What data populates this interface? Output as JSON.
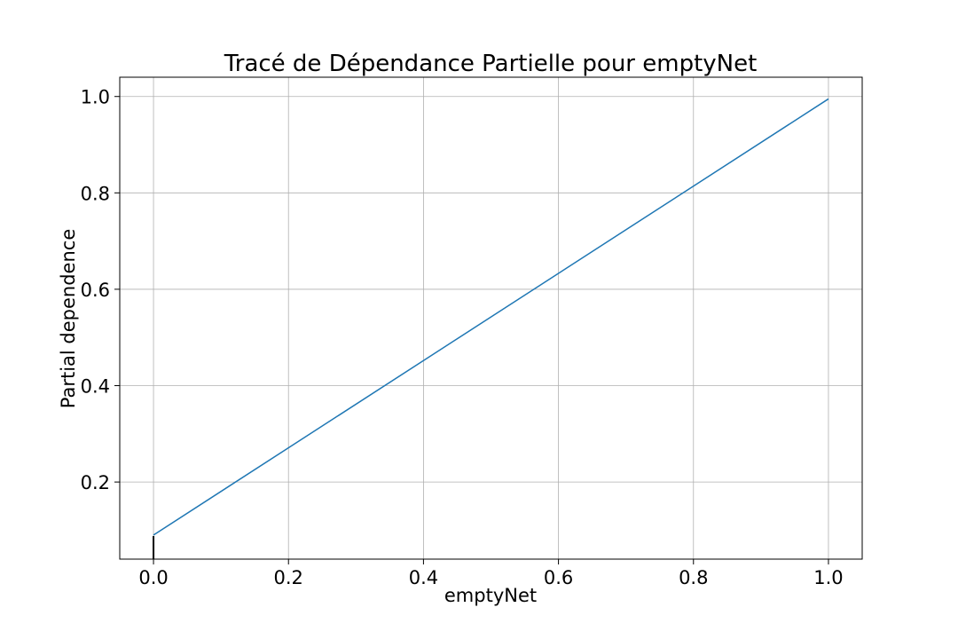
{
  "chart_data": {
    "type": "line",
    "title": "Tracé de Dépendance Partielle pour emptyNet",
    "xlabel": "emptyNet",
    "ylabel": "Partial dependence",
    "xlim": [
      -0.05,
      1.05
    ],
    "ylim": [
      0.04,
      1.04
    ],
    "x_ticks": [
      0.0,
      0.2,
      0.4,
      0.6,
      0.8,
      1.0
    ],
    "x_tick_labels": [
      "0.0",
      "0.2",
      "0.4",
      "0.6",
      "0.8",
      "1.0"
    ],
    "y_ticks": [
      0.2,
      0.4,
      0.6,
      0.8,
      1.0
    ],
    "y_tick_labels": [
      "0.2",
      "0.4",
      "0.6",
      "0.8",
      "1.0"
    ],
    "grid": true,
    "legend": false,
    "series": [
      {
        "color": "#1f77b4",
        "x": [
          0.0,
          1.0
        ],
        "y": [
          0.09,
          0.995
        ]
      }
    ],
    "rug": {
      "color": "#000000",
      "x": [
        0.0
      ]
    }
  }
}
